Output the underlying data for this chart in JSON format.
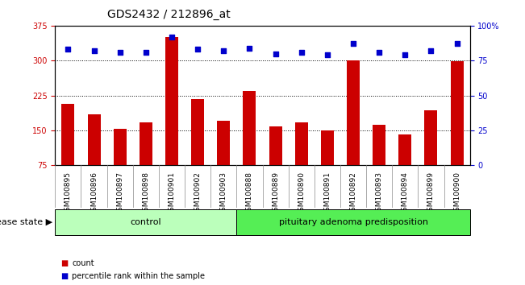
{
  "title": "GDS2432 / 212896_at",
  "samples": [
    "GSM100895",
    "GSM100896",
    "GSM100897",
    "GSM100898",
    "GSM100901",
    "GSM100902",
    "GSM100903",
    "GSM100888",
    "GSM100889",
    "GSM100890",
    "GSM100891",
    "GSM100892",
    "GSM100893",
    "GSM100894",
    "GSM100899",
    "GSM100900"
  ],
  "bar_values": [
    207,
    185,
    153,
    167,
    350,
    218,
    170,
    235,
    158,
    168,
    150,
    300,
    162,
    142,
    193,
    298
  ],
  "percentile_values": [
    83,
    82,
    81,
    81,
    92,
    83,
    82,
    84,
    80,
    81,
    79,
    87,
    81,
    79,
    82,
    87
  ],
  "groups": [
    {
      "label": "control",
      "start": 0,
      "end": 7,
      "color": "#bbffbb"
    },
    {
      "label": "pituitary adenoma predisposition",
      "start": 7,
      "end": 16,
      "color": "#55ee55"
    }
  ],
  "bar_color": "#cc0000",
  "percentile_color": "#0000cc",
  "ylim_left": [
    75,
    375
  ],
  "ylim_right": [
    0,
    100
  ],
  "yticks_left": [
    75,
    150,
    225,
    300,
    375
  ],
  "yticks_right": [
    0,
    25,
    50,
    75,
    100
  ],
  "grid_values": [
    150,
    225,
    300
  ],
  "background_color": "#ffffff",
  "ylabel_left_color": "#cc0000",
  "ylabel_right_color": "#0000cc",
  "legend_count_label": "count",
  "legend_percentile_label": "percentile rank within the sample",
  "disease_state_label": "disease state",
  "title_fontsize": 10,
  "tick_fontsize": 7,
  "label_fontsize": 8,
  "bar_width": 0.5
}
